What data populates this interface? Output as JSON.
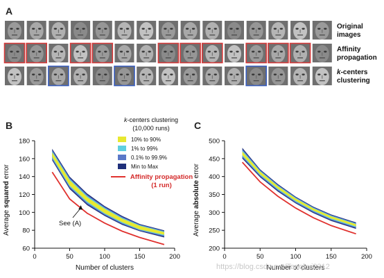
{
  "panel_a": {
    "letter": "A",
    "rows": [
      {
        "label_lines": [
          "Original",
          "images"
        ],
        "italic_prefix": "",
        "boxed_indices": [],
        "box_color": "#d63a3a"
      },
      {
        "label_lines": [
          "Affinity",
          "propagation"
        ],
        "italic_prefix": "",
        "boxed_indices": [
          0,
          1,
          3,
          4,
          7,
          8,
          9,
          11,
          12,
          13
        ],
        "box_color": "#d63a3a"
      },
      {
        "label_lines": [
          "k-centers",
          "clustering"
        ],
        "italic_prefix": "k",
        "boxed_indices": [
          2,
          5,
          11
        ],
        "box_color": "#3a5fc0"
      }
    ],
    "face_count": 15
  },
  "colors": {
    "band_outer": "#1f2f7a",
    "band_mid": "#5a78c8",
    "band_inner": "#5fcfe0",
    "band_core": "#e8e830",
    "ap_line": "#e0312e"
  },
  "legend": {
    "title": "k-centers clustering",
    "subtitle": "(10,000 runs)",
    "items": [
      {
        "label": "10% to 90%",
        "color": "#e8e830"
      },
      {
        "label": "1% to 99%",
        "color": "#5fcfe0"
      },
      {
        "label": "0.1% to 99.9%",
        "color": "#5a78c8"
      },
      {
        "label": "Min to Max",
        "color": "#1f2f7a"
      }
    ],
    "ap_label_lines": [
      "Affinity propagation",
      "(1 run)"
    ]
  },
  "annotation": "See (A)",
  "watermark": "https://blog.csdn.net/Tanqkui2312",
  "chart_data": [
    {
      "panel": "B",
      "type": "line",
      "xlabel": "Number of clusters",
      "ylabel_parts": [
        "Average ",
        "squared",
        " error"
      ],
      "xlim": [
        0,
        200
      ],
      "ylim": [
        60,
        180
      ],
      "xticks": [
        0,
        50,
        100,
        150,
        200
      ],
      "yticks": [
        60,
        80,
        100,
        120,
        140,
        160,
        180
      ],
      "x": [
        25,
        50,
        75,
        100,
        125,
        150,
        185
      ],
      "series": [
        {
          "name": "Affinity propagation",
          "values": [
            145,
            115,
            99,
            88,
            79,
            72,
            64
          ]
        },
        {
          "role": "min",
          "values": [
            158,
            126,
            108,
            96,
            86,
            79,
            72
          ]
        },
        {
          "role": "p10",
          "values": [
            162,
            130,
            112,
            99,
            89,
            81,
            75
          ]
        },
        {
          "role": "p90",
          "values": [
            167,
            136,
            117,
            104,
            93,
            85,
            78
          ]
        },
        {
          "role": "max",
          "values": [
            171,
            140,
            121,
            107,
            96,
            87,
            80
          ]
        }
      ]
    },
    {
      "panel": "C",
      "type": "line",
      "xlabel": "Number of clusters",
      "ylabel_parts": [
        "Average ",
        "absolute",
        " error"
      ],
      "xlim": [
        0,
        200
      ],
      "ylim": [
        200,
        500
      ],
      "xticks": [
        0,
        50,
        100,
        150,
        200
      ],
      "yticks": [
        200,
        250,
        300,
        350,
        400,
        450,
        500
      ],
      "x": [
        25,
        50,
        75,
        100,
        125,
        150,
        185
      ],
      "series": [
        {
          "name": "Affinity propagation",
          "values": [
            440,
            385,
            345,
            312,
            285,
            263,
            240
          ]
        },
        {
          "role": "min",
          "values": [
            450,
            398,
            358,
            325,
            298,
            276,
            254
          ]
        },
        {
          "role": "p10",
          "values": [
            460,
            406,
            366,
            332,
            305,
            283,
            261
          ]
        },
        {
          "role": "p90",
          "values": [
            470,
            414,
            373,
            339,
            311,
            289,
            267
          ]
        },
        {
          "role": "max",
          "values": [
            480,
            420,
            379,
            344,
            316,
            294,
            272
          ]
        }
      ]
    }
  ]
}
